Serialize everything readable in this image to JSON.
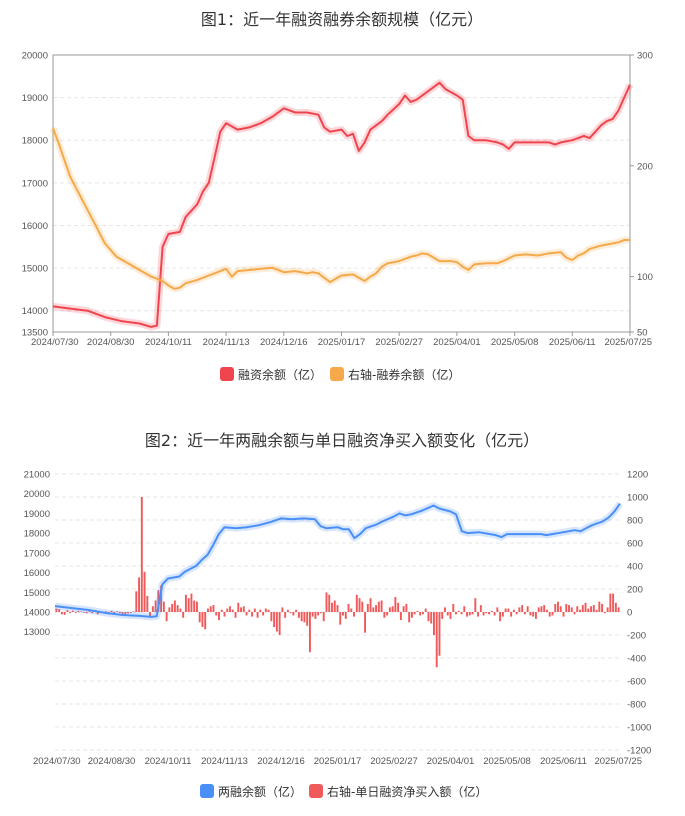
{
  "chart_data": [
    {
      "type": "line",
      "title": "图1：近一年融资融券余额规模（亿元）",
      "x_tick_labels": [
        "2024/07/30",
        "2024/08/30",
        "2024/10/11",
        "2024/11/13",
        "2024/12/16",
        "2025/01/17",
        "2025/02/27",
        "2025/04/01",
        "2025/05/08",
        "2025/06/11",
        "2025/07/25"
      ],
      "y_left": {
        "range": [
          13500,
          20000
        ],
        "ticks": [
          13500,
          14000,
          15000,
          16000,
          17000,
          18000,
          19000,
          20000
        ]
      },
      "y_right": {
        "range": [
          50,
          300
        ],
        "ticks": [
          50,
          100,
          200,
          300
        ]
      },
      "legend": {
        "placement": "bottom"
      },
      "series": [
        {
          "name": "融资余额（亿）",
          "axis": "left",
          "color": "#f0454f",
          "points": [
            [
              0,
              14100
            ],
            [
              0.03,
              14050
            ],
            [
              0.06,
              14000
            ],
            [
              0.09,
              13850
            ],
            [
              0.12,
              13750
            ],
            [
              0.15,
              13700
            ],
            [
              0.17,
              13620
            ],
            [
              0.18,
              13650
            ],
            [
              0.19,
              15500
            ],
            [
              0.2,
              15800
            ],
            [
              0.22,
              15850
            ],
            [
              0.23,
              16200
            ],
            [
              0.25,
              16500
            ],
            [
              0.26,
              16800
            ],
            [
              0.27,
              17000
            ],
            [
              0.28,
              17600
            ],
            [
              0.29,
              18200
            ],
            [
              0.3,
              18400
            ],
            [
              0.32,
              18250
            ],
            [
              0.34,
              18300
            ],
            [
              0.36,
              18400
            ],
            [
              0.38,
              18550
            ],
            [
              0.4,
              18750
            ],
            [
              0.42,
              18650
            ],
            [
              0.44,
              18650
            ],
            [
              0.46,
              18600
            ],
            [
              0.47,
              18300
            ],
            [
              0.48,
              18200
            ],
            [
              0.5,
              18250
            ],
            [
              0.51,
              18100
            ],
            [
              0.52,
              18150
            ],
            [
              0.53,
              17750
            ],
            [
              0.54,
              17950
            ],
            [
              0.55,
              18250
            ],
            [
              0.57,
              18450
            ],
            [
              0.58,
              18600
            ],
            [
              0.6,
              18850
            ],
            [
              0.61,
              19050
            ],
            [
              0.62,
              18900
            ],
            [
              0.63,
              18950
            ],
            [
              0.65,
              19150
            ],
            [
              0.67,
              19350
            ],
            [
              0.68,
              19200
            ],
            [
              0.7,
              19050
            ],
            [
              0.71,
              18950
            ],
            [
              0.72,
              18100
            ],
            [
              0.73,
              18000
            ],
            [
              0.75,
              18000
            ],
            [
              0.77,
              17950
            ],
            [
              0.78,
              17900
            ],
            [
              0.79,
              17800
            ],
            [
              0.8,
              17950
            ],
            [
              0.82,
              17950
            ],
            [
              0.84,
              17950
            ],
            [
              0.86,
              17950
            ],
            [
              0.87,
              17900
            ],
            [
              0.88,
              17950
            ],
            [
              0.9,
              18000
            ],
            [
              0.92,
              18100
            ],
            [
              0.93,
              18050
            ],
            [
              0.94,
              18200
            ],
            [
              0.95,
              18350
            ],
            [
              0.96,
              18450
            ],
            [
              0.97,
              18500
            ],
            [
              0.98,
              18700
            ],
            [
              0.99,
              19000
            ],
            [
              1.0,
              19300
            ]
          ]
        },
        {
          "name": "右轴-融券余额（亿）",
          "axis": "right",
          "color": "#f5a94a",
          "points": [
            [
              0,
              234
            ],
            [
              0.01,
              220
            ],
            [
              0.02,
              205
            ],
            [
              0.03,
              190
            ],
            [
              0.05,
              170
            ],
            [
              0.07,
              150
            ],
            [
              0.09,
              130
            ],
            [
              0.11,
              118
            ],
            [
              0.13,
              112
            ],
            [
              0.15,
              106
            ],
            [
              0.17,
              100
            ],
            [
              0.18,
              98
            ],
            [
              0.19,
              96
            ],
            [
              0.2,
              92
            ],
            [
              0.21,
              89
            ],
            [
              0.22,
              90
            ],
            [
              0.23,
              94
            ],
            [
              0.25,
              97
            ],
            [
              0.27,
              101
            ],
            [
              0.28,
              103
            ],
            [
              0.3,
              107
            ],
            [
              0.31,
              100
            ],
            [
              0.32,
              105
            ],
            [
              0.34,
              106
            ],
            [
              0.36,
              107
            ],
            [
              0.38,
              108
            ],
            [
              0.4,
              104
            ],
            [
              0.42,
              105
            ],
            [
              0.44,
              103
            ],
            [
              0.45,
              104
            ],
            [
              0.46,
              103
            ],
            [
              0.47,
              99
            ],
            [
              0.48,
              95
            ],
            [
              0.49,
              98
            ],
            [
              0.5,
              101
            ],
            [
              0.52,
              102
            ],
            [
              0.53,
              99
            ],
            [
              0.54,
              96
            ],
            [
              0.55,
              100
            ],
            [
              0.56,
              103
            ],
            [
              0.57,
              109
            ],
            [
              0.58,
              112
            ],
            [
              0.6,
              114
            ],
            [
              0.62,
              118
            ],
            [
              0.63,
              119
            ],
            [
              0.64,
              121
            ],
            [
              0.65,
              120
            ],
            [
              0.67,
              114
            ],
            [
              0.69,
              114
            ],
            [
              0.7,
              113
            ],
            [
              0.71,
              109
            ],
            [
              0.72,
              106
            ],
            [
              0.73,
              111
            ],
            [
              0.75,
              112
            ],
            [
              0.77,
              112
            ],
            [
              0.78,
              114
            ],
            [
              0.8,
              119
            ],
            [
              0.82,
              120
            ],
            [
              0.84,
              119
            ],
            [
              0.86,
              121
            ],
            [
              0.88,
              122
            ],
            [
              0.89,
              117
            ],
            [
              0.9,
              115
            ],
            [
              0.91,
              119
            ],
            [
              0.92,
              121
            ],
            [
              0.93,
              125
            ],
            [
              0.95,
              128
            ],
            [
              0.96,
              129
            ],
            [
              0.98,
              131
            ],
            [
              0.99,
              133
            ],
            [
              1.0,
              133
            ]
          ]
        }
      ]
    },
    {
      "type": "bar+line",
      "title": "图2：近一年两融余额与单日融资净买入额变化（亿元）",
      "x_tick_labels": [
        "2024/07/30",
        "2024/08/30",
        "2024/10/11",
        "2024/11/13",
        "2024/12/16",
        "2025/01/17",
        "2025/02/27",
        "2025/04/01",
        "2025/05/08",
        "2025/06/11",
        "2025/07/25"
      ],
      "y_left": {
        "range": [
          13000,
          21000
        ],
        "ticks": [
          13000,
          14000,
          15000,
          16000,
          17000,
          18000,
          19000,
          20000,
          21000
        ],
        "top_value": 21000,
        "zero_value": 14000
      },
      "y_right": {
        "range": [
          -1200,
          1200
        ],
        "ticks": [
          -1200,
          -1000,
          -800,
          -600,
          -400,
          -200,
          0,
          200,
          400,
          600,
          800,
          1000,
          1200
        ]
      },
      "legend": {
        "placement": "bottom"
      },
      "series": [
        {
          "name": "两融余额（亿）",
          "axis": "left",
          "color": "#4a8ff7",
          "type": "line",
          "points": [
            [
              0,
              14300
            ],
            [
              0.03,
              14200
            ],
            [
              0.06,
              14100
            ],
            [
              0.09,
              13950
            ],
            [
              0.12,
              13850
            ],
            [
              0.15,
              13800
            ],
            [
              0.17,
              13750
            ],
            [
              0.18,
              13780
            ],
            [
              0.19,
              15400
            ],
            [
              0.2,
              15700
            ],
            [
              0.22,
              15800
            ],
            [
              0.23,
              16050
            ],
            [
              0.25,
              16350
            ],
            [
              0.26,
              16650
            ],
            [
              0.27,
              16900
            ],
            [
              0.28,
              17400
            ],
            [
              0.29,
              17950
            ],
            [
              0.3,
              18300
            ],
            [
              0.32,
              18250
            ],
            [
              0.34,
              18300
            ],
            [
              0.36,
              18400
            ],
            [
              0.38,
              18550
            ],
            [
              0.4,
              18750
            ],
            [
              0.42,
              18700
            ],
            [
              0.44,
              18750
            ],
            [
              0.46,
              18700
            ],
            [
              0.47,
              18350
            ],
            [
              0.48,
              18250
            ],
            [
              0.5,
              18300
            ],
            [
              0.51,
              18200
            ],
            [
              0.52,
              18200
            ],
            [
              0.53,
              17750
            ],
            [
              0.54,
              17950
            ],
            [
              0.55,
              18250
            ],
            [
              0.57,
              18450
            ],
            [
              0.58,
              18600
            ],
            [
              0.6,
              18850
            ],
            [
              0.61,
              19000
            ],
            [
              0.62,
              18900
            ],
            [
              0.63,
              18950
            ],
            [
              0.65,
              19150
            ],
            [
              0.67,
              19400
            ],
            [
              0.68,
              19250
            ],
            [
              0.7,
              19100
            ],
            [
              0.71,
              18950
            ],
            [
              0.72,
              18100
            ],
            [
              0.73,
              18000
            ],
            [
              0.75,
              18050
            ],
            [
              0.77,
              17950
            ],
            [
              0.78,
              17900
            ],
            [
              0.79,
              17800
            ],
            [
              0.8,
              17950
            ],
            [
              0.82,
              17950
            ],
            [
              0.84,
              17950
            ],
            [
              0.86,
              17950
            ],
            [
              0.87,
              17900
            ],
            [
              0.88,
              17950
            ],
            [
              0.9,
              18050
            ],
            [
              0.92,
              18150
            ],
            [
              0.93,
              18100
            ],
            [
              0.94,
              18250
            ],
            [
              0.95,
              18400
            ],
            [
              0.96,
              18500
            ],
            [
              0.97,
              18600
            ],
            [
              0.98,
              18800
            ],
            [
              0.99,
              19100
            ],
            [
              1.0,
              19500
            ]
          ]
        },
        {
          "name": "右轴-单日融资净买入额（亿）",
          "axis": "right",
          "color": "#f05a5a",
          "type": "bar",
          "values": [
            30,
            25,
            -20,
            -25,
            15,
            -10,
            12,
            -8,
            10,
            5,
            -6,
            -12,
            8,
            -10,
            15,
            -20,
            5,
            -8,
            6,
            -18,
            10,
            -15,
            6,
            -8,
            -30,
            -20,
            -12,
            -8,
            5,
            180,
            300,
            1000,
            350,
            140,
            -40,
            50,
            100,
            190,
            230,
            90,
            -80,
            40,
            70,
            100,
            60,
            30,
            -50,
            150,
            120,
            160,
            100,
            90,
            -90,
            -130,
            -150,
            30,
            50,
            60,
            -30,
            -70,
            20,
            -40,
            30,
            50,
            20,
            -50,
            80,
            40,
            50,
            -30,
            20,
            -40,
            30,
            -50,
            20,
            -30,
            30,
            20,
            -80,
            -130,
            -170,
            -200,
            40,
            -50,
            20,
            -10,
            -30,
            20,
            -50,
            -80,
            -90,
            -120,
            -350,
            -40,
            -60,
            -30,
            -10,
            -80,
            170,
            150,
            80,
            100,
            60,
            -110,
            -30,
            -60,
            70,
            30,
            -40,
            150,
            120,
            90,
            -180,
            70,
            120,
            40,
            60,
            90,
            100,
            -50,
            -30,
            40,
            50,
            130,
            80,
            -70,
            50,
            70,
            -90,
            -50,
            -20,
            10,
            -30,
            -20,
            30,
            -80,
            -100,
            -200,
            -480,
            -380,
            -60,
            40,
            -30,
            -60,
            70,
            -20,
            10,
            -20,
            50,
            -40,
            -30,
            -20,
            120,
            -40,
            60,
            -30,
            -10,
            -20,
            10,
            -30,
            40,
            -80,
            -40,
            30,
            30,
            -40,
            20,
            -20,
            40,
            60,
            -20,
            50,
            -30,
            -40,
            -60,
            40,
            50,
            60,
            20,
            -40,
            -30,
            70,
            90,
            50,
            -40,
            70,
            60,
            40,
            -20,
            50,
            20,
            60,
            80,
            30,
            50,
            60,
            20,
            90,
            70,
            -10,
            40,
            160,
            160,
            80,
            40
          ]
        }
      ]
    }
  ]
}
